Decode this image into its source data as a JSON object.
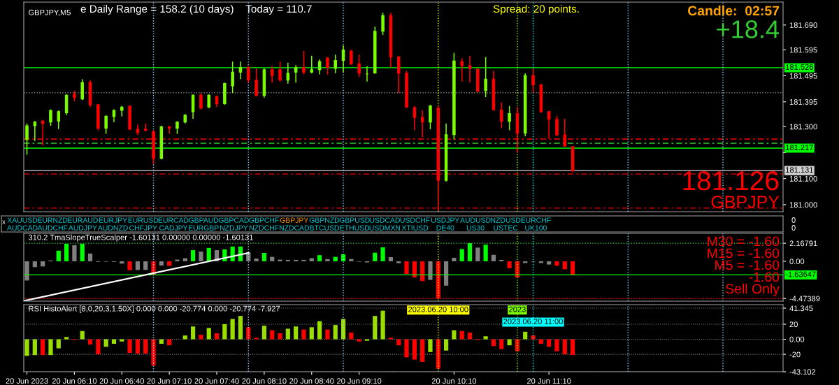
{
  "chart_data": [
    {
      "type": "candlestick",
      "title": "GBPJPY,M5",
      "annotations": [
        "e Daily Range = 158.2 (10 days)    Today = 110.7",
        "Spread: 20 points.",
        "Candle:  02:57",
        "+18.4",
        "181.126",
        "GBPJPY"
      ],
      "x": [
        "2023-06-20T05:40",
        "2023-06-20T05:45",
        "2023-06-20T05:50",
        "2023-06-20T05:55",
        "2023-06-20T06:00",
        "2023-06-20T06:05",
        "2023-06-20T06:10",
        "2023-06-20T06:15",
        "2023-06-20T06:20",
        "2023-06-20T06:25",
        "2023-06-20T06:30",
        "2023-06-20T06:35",
        "2023-06-20T06:40",
        "2023-06-20T06:45",
        "2023-06-20T06:50",
        "2023-06-20T06:55",
        "2023-06-20T07:00",
        "2023-06-20T07:05",
        "2023-06-20T07:10",
        "2023-06-20T07:15",
        "2023-06-20T07:20",
        "2023-06-20T07:25",
        "2023-06-20T07:30",
        "2023-06-20T07:35",
        "2023-06-20T07:40",
        "2023-06-20T07:45",
        "2023-06-20T07:50",
        "2023-06-20T07:55",
        "2023-06-20T08:00",
        "2023-06-20T08:05",
        "2023-06-20T08:10",
        "2023-06-20T08:15",
        "2023-06-20T08:20",
        "2023-06-20T08:25",
        "2023-06-20T08:30",
        "2023-06-20T08:35",
        "2023-06-20T08:40",
        "2023-06-20T08:45",
        "2023-06-20T08:50",
        "2023-06-20T08:55",
        "2023-06-20T09:00",
        "2023-06-20T09:05",
        "2023-06-20T09:10",
        "2023-06-20T09:15",
        "2023-06-20T09:20",
        "2023-06-20T09:25",
        "2023-06-20T09:30",
        "2023-06-20T09:35",
        "2023-06-20T09:40",
        "2023-06-20T09:45",
        "2023-06-20T09:50",
        "2023-06-20T09:55",
        "2023-06-20T10:00",
        "2023-06-20T10:05",
        "2023-06-20T10:10",
        "2023-06-20T10:15",
        "2023-06-20T10:20",
        "2023-06-20T10:25",
        "2023-06-20T10:30",
        "2023-06-20T10:35",
        "2023-06-20T10:40",
        "2023-06-20T10:45",
        "2023-06-20T10:50",
        "2023-06-20T10:55",
        "2023-06-20T11:00",
        "2023-06-20T11:05",
        "2023-06-20T11:10",
        "2023-06-20T11:15",
        "2023-06-20T11:20",
        "2023-06-20T11:25"
      ],
      "ohlc": [
        [
          181.25,
          181.312,
          181.192,
          181.303
        ],
        [
          181.303,
          181.321,
          181.245,
          181.317
        ],
        [
          181.321,
          181.326,
          181.227,
          181.312
        ],
        [
          181.317,
          181.366,
          181.303,
          181.362
        ],
        [
          181.321,
          181.362,
          181.29,
          181.357
        ],
        [
          181.353,
          181.424,
          181.344,
          181.42
        ],
        [
          181.424,
          181.438,
          181.397,
          181.411
        ],
        [
          181.406,
          181.482,
          181.402,
          181.469
        ],
        [
          181.469,
          181.478,
          181.375,
          181.384
        ],
        [
          181.384,
          181.384,
          181.286,
          181.294
        ],
        [
          181.294,
          181.344,
          181.272,
          181.339
        ],
        [
          181.339,
          181.366,
          181.317,
          181.362
        ],
        [
          181.362,
          181.379,
          181.339,
          181.375
        ],
        [
          181.379,
          181.379,
          181.286,
          181.29
        ],
        [
          181.29,
          181.308,
          181.268,
          181.277
        ],
        [
          181.29,
          181.312,
          181.281,
          181.286
        ],
        [
          181.281,
          181.286,
          181.156,
          181.178
        ],
        [
          181.178,
          181.303,
          181.174,
          181.299
        ],
        [
          181.299,
          181.303,
          181.272,
          181.294
        ],
        [
          181.294,
          181.321,
          181.272,
          181.317
        ],
        [
          181.317,
          181.348,
          181.312,
          181.344
        ],
        [
          181.357,
          181.424,
          181.33,
          181.42
        ],
        [
          181.42,
          181.429,
          181.366,
          181.371
        ],
        [
          181.375,
          181.424,
          181.371,
          181.42
        ],
        [
          181.415,
          181.42,
          181.375,
          181.388
        ],
        [
          181.388,
          181.469,
          181.384,
          181.465
        ],
        [
          181.456,
          181.55,
          181.429,
          181.509
        ],
        [
          181.509,
          181.55,
          181.482,
          181.527
        ],
        [
          181.527,
          181.532,
          181.469,
          181.478
        ],
        [
          181.478,
          181.523,
          181.415,
          181.42
        ],
        [
          181.42,
          181.523,
          181.411,
          181.518
        ],
        [
          181.518,
          181.532,
          181.469,
          181.496
        ],
        [
          181.518,
          181.55,
          181.473,
          181.478
        ],
        [
          181.478,
          181.545,
          181.465,
          181.505
        ],
        [
          181.509,
          181.536,
          181.469,
          181.527
        ],
        [
          181.527,
          181.59,
          181.5,
          181.509
        ],
        [
          181.509,
          181.572,
          181.505,
          181.518
        ],
        [
          181.518,
          181.558,
          181.5,
          181.55
        ],
        [
          181.563,
          181.567,
          181.5,
          181.527
        ],
        [
          181.523,
          181.576,
          181.505,
          181.554
        ],
        [
          181.554,
          181.612,
          181.509,
          181.594
        ],
        [
          181.59,
          181.594,
          181.536,
          181.541
        ],
        [
          181.541,
          181.576,
          181.491,
          181.505
        ],
        [
          181.502,
          181.532,
          181.473,
          181.502
        ],
        [
          181.505,
          181.684,
          181.505,
          181.666
        ],
        [
          181.666,
          181.737,
          181.652,
          181.726
        ],
        [
          181.726,
          181.737,
          181.527,
          181.567
        ],
        [
          181.567,
          181.572,
          181.429,
          181.505
        ],
        [
          181.505,
          181.514,
          181.371,
          181.375
        ],
        [
          181.373,
          181.379,
          181.286,
          181.335
        ],
        [
          181.335,
          181.362,
          181.259,
          181.317
        ],
        [
          181.317,
          181.384,
          181.29,
          181.379
        ],
        [
          181.371,
          181.379,
          180.977,
          181.093
        ],
        [
          181.093,
          181.312,
          181.089,
          181.269
        ],
        [
          181.269,
          181.583,
          181.25,
          181.552
        ],
        [
          181.55,
          181.563,
          181.473,
          181.534
        ],
        [
          181.534,
          181.572,
          181.469,
          181.523
        ],
        [
          181.52,
          181.52,
          181.433,
          181.436
        ],
        [
          181.438,
          181.567,
          181.413,
          181.482
        ],
        [
          181.482,
          181.514,
          181.362,
          181.364
        ],
        [
          181.364,
          181.393,
          181.294,
          181.32
        ],
        [
          181.32,
          181.379,
          181.286,
          181.35
        ],
        [
          181.35,
          181.375,
          181.2,
          181.275
        ],
        [
          181.275,
          181.505,
          181.263,
          181.496
        ],
        [
          181.496,
          181.523,
          181.429,
          181.46
        ],
        [
          181.46,
          181.465,
          181.353,
          181.357
        ],
        [
          181.357,
          181.359,
          181.254,
          181.328
        ],
        [
          181.328,
          181.341,
          181.263,
          181.268
        ],
        [
          181.268,
          181.33,
          181.223,
          181.225
        ],
        [
          181.223,
          181.223,
          181.124,
          181.131
        ]
      ],
      "colors": [
        "#7cfc00",
        "#7cfc00",
        "#ff0000",
        "#7cfc00",
        "#7cfc00",
        "#7cfc00",
        "#ff0000",
        "#7cfc00",
        "#ff0000",
        "#ff0000",
        "#7cfc00",
        "#7cfc00",
        "#7cfc00",
        "#ff0000",
        "#ff0000",
        "#ff0000",
        "#ff0000",
        "#7cfc00",
        "#ff0000",
        "#7cfc00",
        "#7cfc00",
        "#7cfc00",
        "#ff0000",
        "#7cfc00",
        "#ff0000",
        "#7cfc00",
        "#7cfc00",
        "#7cfc00",
        "#ff0000",
        "#ff0000",
        "#7cfc00",
        "#ff0000",
        "#ff0000",
        "#7cfc00",
        "#7cfc00",
        "#ff0000",
        "#7cfc00",
        "#7cfc00",
        "#ff0000",
        "#7cfc00",
        "#7cfc00",
        "#ff0000",
        "#ff0000",
        "#7cfc00",
        "#7cfc00",
        "#7cfc00",
        "#ff0000",
        "#ff0000",
        "#ff0000",
        "#ff0000",
        "#ff0000",
        "#7cfc00",
        "#ff0000",
        "#7cfc00",
        "#7cfc00",
        "#ff0000",
        "#ff0000",
        "#ff0000",
        "#7cfc00",
        "#ff0000",
        "#ff0000",
        "#7cfc00",
        "#ff0000",
        "#7cfc00",
        "#ff0000",
        "#ff0000",
        "#ff0000",
        "#ff0000",
        "#ff0000",
        "#ff0000"
      ],
      "xlim": [
        "2023-06-20T05:38",
        "2023-06-20T13:38"
      ],
      "ylim": [
        180.973,
        181.778
      ],
      "yticks": [
        {
          "value": 181.69,
          "label": "181.690"
        },
        181.595,
        181.495,
        181.395,
        {
          "value": 181.3,
          "label": "181.300"
        },
        {
          "value": 181.2,
          "label": null
        },
        {
          "value": 181.1,
          "label": "181.100"
        },
        {
          "value": 181.0,
          "label": "181.000"
        }
      ],
      "tick_labels": "y",
      "ref_lines": [
        {
          "axis": "y",
          "value": 181.526,
          "label": "181.526",
          "color": "#00ff00",
          "line_style": "solid"
        },
        {
          "axis": "y",
          "value": 181.217,
          "label": "181.217",
          "color": "#00ff00",
          "line_style": "solid"
        },
        {
          "axis": "y",
          "value": 181.236,
          "color": "#32cd32",
          "line_style": "dashed"
        },
        {
          "axis": "y",
          "value": 181.252,
          "color": "#ff0000",
          "line_style": "dashed"
        },
        {
          "axis": "y",
          "value": 181.43,
          "color": "#808080",
          "line_style": "dotted"
        },
        {
          "axis": "y",
          "value": 181.131,
          "label": "181.131",
          "color": "#d0d0d0",
          "line_style": "solid"
        },
        {
          "axis": "y",
          "value": 181.118,
          "color": "#cc0000",
          "line_style": "dashed"
        },
        {
          "axis": "y",
          "value": 180.987,
          "color": "#cc0000",
          "line_style": "dashed"
        },
        {
          "axis": "x",
          "value": "2023-06-20T07:00",
          "color": "#87cefa",
          "line_style": "dotted"
        },
        {
          "axis": "x",
          "value": "2023-06-20T08:00",
          "color": "#87cefa",
          "line_style": "dotted"
        },
        {
          "axis": "x",
          "value": "2023-06-20T09:00",
          "color": "#87cefa",
          "line_style": "dotted"
        },
        {
          "axis": "x",
          "value": "2023-06-20T10:00",
          "color": "#ffff00",
          "line_style": "dotted"
        },
        {
          "axis": "x",
          "value": "2023-06-20T10:50",
          "color": "#7cfc00",
          "line_style": "dotted"
        },
        {
          "axis": "x",
          "value": "2023-06-20T11:00",
          "color": "#00ffff",
          "line_style": "dotted"
        },
        {
          "axis": "x",
          "value": "2023-06-20T12:00",
          "color": "#87cefa",
          "line_style": "dotted"
        },
        {
          "axis": "x",
          "value": "2023-06-20T13:00",
          "color": "#87cefa",
          "line_style": "dotted"
        }
      ]
    },
    {
      "type": "other",
      "categories": [
        "XAUUSD",
        "EURNZD",
        "EURAUD",
        "EURJPY",
        "EURUSD",
        "EURCAD",
        "GBPAUD",
        "GBPCAD",
        "GBPCHF",
        "GBPJPY",
        "GBPNZD",
        "GBPUSD",
        "USDCAD",
        "USDCHF",
        "USDJPY",
        "AUDUSD",
        "NZDUSD",
        "EURCHF",
        "AUDCAD",
        "AUDCHF",
        "AUDJPY",
        "AUDNZD",
        "CHFJPY",
        "CADJPY",
        "EURGBP",
        "NZDJPY",
        "NZDCHF",
        "NZDCAD",
        "BTCUSD",
        "ETHUSD",
        "USDMXN",
        "XTIUSD",
        "DE40",
        "US30",
        "USTEC",
        "UK100"
      ],
      "colors": [
        "#00c8d2",
        "#00c8d2",
        "#00c8d2",
        "#00c8d2",
        "#00c8d2",
        "#00c8d2",
        "#00c8d2",
        "#00c8d2",
        "#00c8d2",
        "#ff9900",
        "#00c8d2",
        "#00c8d2",
        "#00c8d2",
        "#00c8d2",
        "#00c8d2",
        "#00c8d2",
        "#00c8d2",
        "#00c8d2",
        "#00c8d2",
        "#00c8d2",
        "#00c8d2",
        "#00c8d2",
        "#00c8d2",
        "#00c8d2",
        "#00c8d2",
        "#00c8d2",
        "#00c8d2",
        "#00c8d2",
        "#00c8d2",
        "#00c8d2",
        "#00c8d2",
        "#00c8d2",
        "#00c8d2",
        "#00c8d2",
        "#00c8d2",
        "#00c8d2"
      ],
      "annotations": [
        "x",
        "0",
        "0"
      ]
    },
    {
      "type": "bar",
      "title": "310.2 TmaSlopeTrueScalper -1.60131 0.00000 0.00000 -1.60131",
      "annotations": [
        "M30 = -1.60",
        "M15 = -1.60",
        "M5 = -1.60",
        "-1.60",
        "Sell Only"
      ],
      "x": [
        "2023-06-20T05:40",
        "2023-06-20T05:45",
        "2023-06-20T05:50",
        "2023-06-20T05:55",
        "2023-06-20T06:00",
        "2023-06-20T06:05",
        "2023-06-20T06:10",
        "2023-06-20T06:15",
        "2023-06-20T06:20",
        "2023-06-20T06:25",
        "2023-06-20T06:30",
        "2023-06-20T06:35",
        "2023-06-20T06:40",
        "2023-06-20T06:45",
        "2023-06-20T06:50",
        "2023-06-20T06:55",
        "2023-06-20T07:00",
        "2023-06-20T07:05",
        "2023-06-20T07:10",
        "2023-06-20T07:15",
        "2023-06-20T07:20",
        "2023-06-20T07:25",
        "2023-06-20T07:30",
        "2023-06-20T07:35",
        "2023-06-20T07:40",
        "2023-06-20T07:45",
        "2023-06-20T07:50",
        "2023-06-20T07:55",
        "2023-06-20T08:00",
        "2023-06-20T08:05",
        "2023-06-20T08:10",
        "2023-06-20T08:15",
        "2023-06-20T08:20",
        "2023-06-20T08:25",
        "2023-06-20T08:30",
        "2023-06-20T08:35",
        "2023-06-20T08:40",
        "2023-06-20T08:45",
        "2023-06-20T08:50",
        "2023-06-20T08:55",
        "2023-06-20T09:00",
        "2023-06-20T09:05",
        "2023-06-20T09:10",
        "2023-06-20T09:15",
        "2023-06-20T09:20",
        "2023-06-20T09:25",
        "2023-06-20T09:30",
        "2023-06-20T09:35",
        "2023-06-20T09:40",
        "2023-06-20T09:45",
        "2023-06-20T09:50",
        "2023-06-20T09:55",
        "2023-06-20T10:00",
        "2023-06-20T10:05",
        "2023-06-20T10:10",
        "2023-06-20T10:15",
        "2023-06-20T10:20",
        "2023-06-20T10:25",
        "2023-06-20T10:30",
        "2023-06-20T10:35",
        "2023-06-20T10:40",
        "2023-06-20T10:45",
        "2023-06-20T10:50",
        "2023-06-20T10:55",
        "2023-06-20T11:00",
        "2023-06-20T11:05",
        "2023-06-20T11:10",
        "2023-06-20T11:15",
        "2023-06-20T11:20",
        "2023-06-20T11:25"
      ],
      "series": [
        {
          "type": "bar",
          "values": [
            -2.31,
            -0.7,
            -0.62,
            0.1,
            1.27,
            2.1,
            1.93,
            2.1,
            0.93,
            -0.08,
            -0.06,
            -0.08,
            -0.28,
            -1.07,
            -1.04,
            -1.04,
            -1.61,
            -0.51,
            -0.56,
            0.2,
            0.37,
            1.33,
            1.17,
            1.6,
            1.33,
            1.43,
            1.77,
            1.77,
            1.1,
            0.33,
            1.0,
            0.53,
            0.2,
            0.17,
            0.17,
            0.17,
            0.37,
            0.73,
            0.27,
            0.53,
            0.83,
            0.27,
            -0.06,
            -0.14,
            1.03,
            1.67,
            0.5,
            -0.23,
            -1.52,
            -1.94,
            -2.38,
            -2.24,
            -4.47,
            -2.93,
            0.42,
            1.47,
            2.17,
            1.64,
            1.99,
            0.77,
            0.17,
            -0.84,
            -1.94,
            -0.21,
            -0.06,
            -0.21,
            -0.39,
            -0.54,
            -0.96,
            -1.6
          ],
          "colors": [
            "#808080",
            "#808080",
            "#808080",
            "#808080",
            "#00ff00",
            "#00ff00",
            "#808080",
            "#00ff00",
            "#808080",
            "#808080",
            "#808080",
            "#808080",
            "#808080",
            "#ff0000",
            "#808080",
            "#808080",
            "#ff0000",
            "#808080",
            "#ff0000",
            "#808080",
            "#808080",
            "#00ff00",
            "#808080",
            "#00ff00",
            "#808080",
            "#00ff00",
            "#00ff00",
            "#00ff00",
            "#808080",
            "#808080",
            "#00ff00",
            "#808080",
            "#808080",
            "#808080",
            "#808080",
            "#808080",
            "#808080",
            "#00ff00",
            "#808080",
            "#00ff00",
            "#00ff00",
            "#808080",
            "#808080",
            "#808080",
            "#00ff00",
            "#00ff00",
            "#808080",
            "#808080",
            "#ff0000",
            "#ff0000",
            "#ff0000",
            "#808080",
            "#ff0000",
            "#808080",
            "#808080",
            "#00ff00",
            "#00ff00",
            "#808080",
            "#00ff00",
            "#808080",
            "#808080",
            "#ff0000",
            "#ff0000",
            "#808080",
            "#808080",
            "#808080",
            "#808080",
            "#ff0000",
            "#ff0000",
            "#ff0000"
          ]
        },
        {
          "type": "line",
          "color": "#ffffff",
          "x": [
            "2023-06-20T05:38",
            "2023-06-20T08:00"
          ],
          "values": [
            -4.76,
            1.0
          ]
        }
      ],
      "xlim": [
        "2023-06-20T05:38",
        "2023-06-20T13:38"
      ],
      "ylim": [
        -4.79,
        3.35
      ],
      "yticks": [
        2.16791,
        {
          "value": 0,
          "label": "0.00"
        },
        -4.47389
      ],
      "tick_labels": "y",
      "ref_lines": [
        {
          "axis": "y",
          "value": 2.16791,
          "color": "#32cd32",
          "line_style": "dotted"
        },
        {
          "axis": "y",
          "value": -4.47389,
          "color": "#ff0000",
          "line_style": "dotted"
        },
        {
          "axis": "y",
          "value": -1.63647,
          "label": "-1.63647",
          "color": "#00ff00",
          "line_style": "solid"
        },
        {
          "axis": "x",
          "value": "2023-06-20T07:00",
          "color": "#87cefa",
          "line_style": "dotted"
        },
        {
          "axis": "x",
          "value": "2023-06-20T08:00",
          "color": "#87cefa",
          "line_style": "dotted"
        },
        {
          "axis": "x",
          "value": "2023-06-20T09:00",
          "color": "#87cefa",
          "line_style": "dotted"
        },
        {
          "axis": "x",
          "value": "2023-06-20T10:00",
          "color": "#ffff00",
          "line_style": "dotted"
        },
        {
          "axis": "x",
          "value": "2023-06-20T10:50",
          "color": "#7cfc00",
          "line_style": "dotted"
        },
        {
          "axis": "x",
          "value": "2023-06-20T11:00",
          "color": "#00ffff",
          "line_style": "dotted"
        },
        {
          "axis": "x",
          "value": "2023-06-20T12:00",
          "color": "#87cefa",
          "line_style": "dotted"
        },
        {
          "axis": "x",
          "value": "2023-06-20T13:00",
          "color": "#87cefa",
          "line_style": "dotted"
        }
      ]
    },
    {
      "type": "bar",
      "title": "RSI HistoAlert [8,0,20,3,1.50X] 0.000 0.000 -20.774 0.000 -20.774 -7.927",
      "x": [
        "2023-06-20T05:40",
        "2023-06-20T05:45",
        "2023-06-20T05:50",
        "2023-06-20T05:55",
        "2023-06-20T06:00",
        "2023-06-20T06:05",
        "2023-06-20T06:10",
        "2023-06-20T06:15",
        "2023-06-20T06:20",
        "2023-06-20T06:25",
        "2023-06-20T06:30",
        "2023-06-20T06:35",
        "2023-06-20T06:40",
        "2023-06-20T06:45",
        "2023-06-20T06:50",
        "2023-06-20T06:55",
        "2023-06-20T07:00",
        "2023-06-20T07:05",
        "2023-06-20T07:10",
        "2023-06-20T07:15",
        "2023-06-20T07:20",
        "2023-06-20T07:25",
        "2023-06-20T07:30",
        "2023-06-20T07:35",
        "2023-06-20T07:40",
        "2023-06-20T07:45",
        "2023-06-20T07:50",
        "2023-06-20T07:55",
        "2023-06-20T08:00",
        "2023-06-20T08:05",
        "2023-06-20T08:10",
        "2023-06-20T08:15",
        "2023-06-20T08:20",
        "2023-06-20T08:25",
        "2023-06-20T08:30",
        "2023-06-20T08:35",
        "2023-06-20T08:40",
        "2023-06-20T08:45",
        "2023-06-20T08:50",
        "2023-06-20T08:55",
        "2023-06-20T09:00",
        "2023-06-20T09:05",
        "2023-06-20T09:10",
        "2023-06-20T09:15",
        "2023-06-20T09:20",
        "2023-06-20T09:25",
        "2023-06-20T09:30",
        "2023-06-20T09:35",
        "2023-06-20T09:40",
        "2023-06-20T09:45",
        "2023-06-20T09:50",
        "2023-06-20T09:55",
        "2023-06-20T10:00",
        "2023-06-20T10:05",
        "2023-06-20T10:10",
        "2023-06-20T10:15",
        "2023-06-20T10:20",
        "2023-06-20T10:25",
        "2023-06-20T10:30",
        "2023-06-20T10:35",
        "2023-06-20T10:40",
        "2023-06-20T10:45",
        "2023-06-20T10:50",
        "2023-06-20T10:55",
        "2023-06-20T11:00",
        "2023-06-20T11:05",
        "2023-06-20T11:10",
        "2023-06-20T11:15",
        "2023-06-20T11:20",
        "2023-06-20T11:25"
      ],
      "values": [
        -22,
        -21,
        -21,
        -21,
        -12,
        3,
        -1,
        11,
        -7,
        -20,
        -10,
        -6,
        -3,
        -18,
        -19,
        -19,
        -35,
        -6,
        -8,
        0,
        5,
        17,
        6,
        15,
        8,
        20,
        27,
        31,
        16,
        2,
        18,
        12,
        8,
        14,
        17,
        13,
        16,
        24,
        13,
        19,
        27,
        9,
        -3,
        -2,
        31,
        38,
        2,
        -8,
        -24,
        -27,
        -30,
        -17,
        -39,
        -15,
        12,
        11,
        9,
        -1,
        4,
        -9,
        -13,
        -8,
        -16,
        10,
        5,
        -6,
        -10,
        -16,
        -20,
        -21
      ],
      "colors": [
        "#9ade00",
        "#9ade00",
        "#ff0000",
        "#9ade00",
        "#9ade00",
        "#9ade00",
        "#ff0000",
        "#9ade00",
        "#ff0000",
        "#ff0000",
        "#9ade00",
        "#9ade00",
        "#9ade00",
        "#ff0000",
        "#ff0000",
        "#ff0000",
        "#ff0000",
        "#9ade00",
        "#ff0000",
        "#9ade00",
        "#9ade00",
        "#9ade00",
        "#ff0000",
        "#9ade00",
        "#ff0000",
        "#9ade00",
        "#9ade00",
        "#9ade00",
        "#ff0000",
        "#ff0000",
        "#9ade00",
        "#ff0000",
        "#ff0000",
        "#9ade00",
        "#9ade00",
        "#ff0000",
        "#9ade00",
        "#9ade00",
        "#ff0000",
        "#9ade00",
        "#9ade00",
        "#ff0000",
        "#ff0000",
        "#9ade00",
        "#9ade00",
        "#9ade00",
        "#ff0000",
        "#ff0000",
        "#ff0000",
        "#ff0000",
        "#ff0000",
        "#9ade00",
        "#ff0000",
        "#9ade00",
        "#9ade00",
        "#ff0000",
        "#ff0000",
        "#ff0000",
        "#9ade00",
        "#ff0000",
        "#ff0000",
        "#9ade00",
        "#ff0000",
        "#9ade00",
        "#ff0000",
        "#ff0000",
        "#ff0000",
        "#ff0000",
        "#ff0000",
        "#ff0000"
      ],
      "xlim": [
        "2023-06-20T05:38",
        "2023-06-20T13:38"
      ],
      "ylim": [
        -43.102,
        46
      ],
      "xticks": [
        {
          "value": "2023-06-20T05:40",
          "label": "20 Jun 2023"
        },
        {
          "value": "2023-06-20T06:10",
          "label": "20 Jun 06:10"
        },
        {
          "value": "2023-06-20T06:40",
          "label": "20 Jun 06:40"
        },
        {
          "value": "2023-06-20T07:10",
          "label": "20 Jun 07:10"
        },
        {
          "value": "2023-06-20T07:40",
          "label": "20 Jun 07:40"
        },
        {
          "value": "2023-06-20T08:10",
          "label": "20 Jun 08:10"
        },
        {
          "value": "2023-06-20T08:40",
          "label": "20 Jun 08:40"
        },
        {
          "value": "2023-06-20T09:10",
          "label": "20 Jun 09:10"
        },
        {
          "value": "2023-06-20T10:10",
          "label": "20 Jun 10:10"
        },
        {
          "value": "2023-06-20T11:10",
          "label": "20 Jun 11:10"
        }
      ],
      "yticks": [
        41.345,
        20,
        {
          "value": 0,
          "label": "0.00"
        },
        -20,
        -43.102
      ],
      "grid": "y",
      "ref_lines": [
        {
          "axis": "x",
          "value": "2023-06-20T07:00",
          "color": "#87cefa",
          "line_style": "dotted"
        },
        {
          "axis": "x",
          "value": "2023-06-20T08:00",
          "color": "#87cefa",
          "line_style": "dotted"
        },
        {
          "axis": "x",
          "value": "2023-06-20T09:00",
          "color": "#87cefa",
          "line_style": "dotted"
        },
        {
          "axis": "x",
          "value": "2023-06-20T10:00",
          "label": "2023.06.20 10:00",
          "color": "#ffff00",
          "line_style": "dotted"
        },
        {
          "axis": "x",
          "value": "2023-06-20T10:50",
          "label": "2023",
          "color": "#7cfc00",
          "line_style": "dotted"
        },
        {
          "axis": "x",
          "value": "2023-06-20T11:00",
          "label": "2023.06.20 11:00",
          "color": "#00ffff",
          "line_style": "dotted"
        },
        {
          "axis": "x",
          "value": "2023-06-20T12:00",
          "color": "#87cefa",
          "line_style": "dotted"
        },
        {
          "axis": "x",
          "value": "2023-06-20T13:00",
          "color": "#87cefa",
          "line_style": "dotted"
        }
      ]
    }
  ]
}
